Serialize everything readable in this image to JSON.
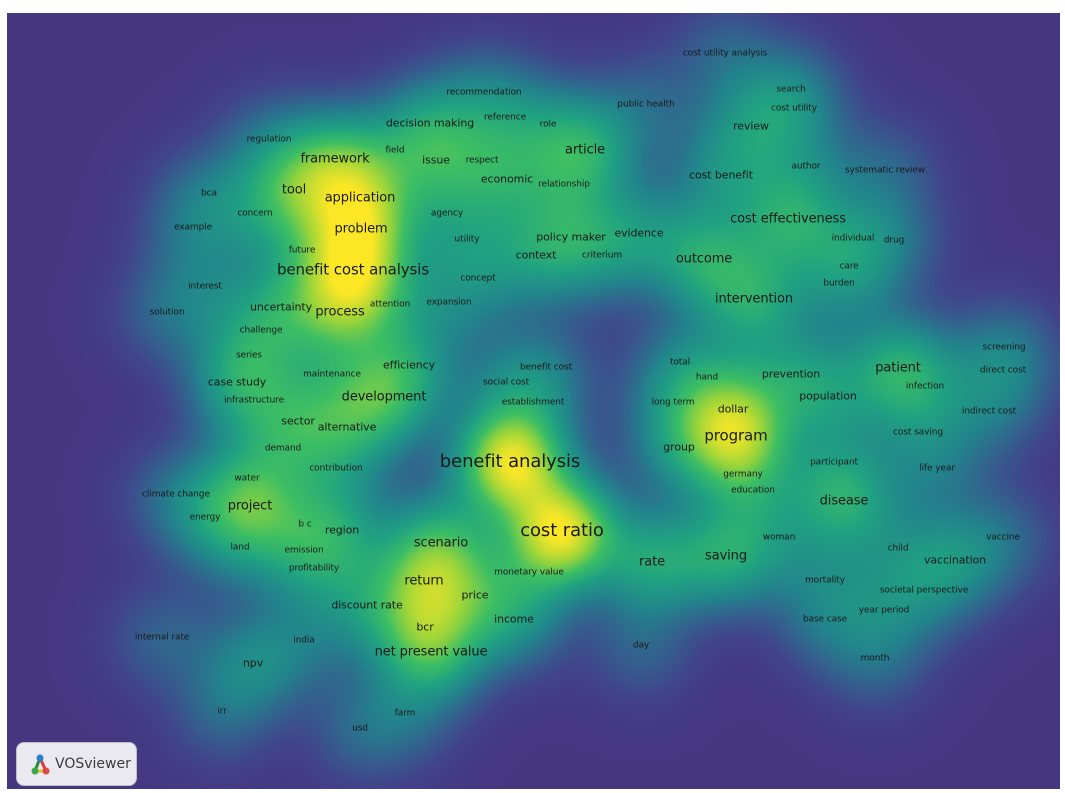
{
  "logo": {
    "text": "VOSviewer",
    "icon": "vosviewer-logo-icon"
  },
  "colors": {
    "background": "#453680",
    "low": "#31688e",
    "mid": "#21908d",
    "high": "#5ec962",
    "peak": "#fde725"
  },
  "terms": [
    {
      "label": "cost utility analysis",
      "w": 0
    },
    {
      "label": "recommendation",
      "w": 0
    },
    {
      "label": "search",
      "w": 0
    },
    {
      "label": "public health",
      "w": 0
    },
    {
      "label": "cost utility",
      "w": 0
    },
    {
      "label": "decision making",
      "w": 1
    },
    {
      "label": "reference",
      "w": 0
    },
    {
      "label": "role",
      "w": 0
    },
    {
      "label": "review",
      "w": 1
    },
    {
      "label": "regulation",
      "w": 0
    },
    {
      "label": "article",
      "w": 2
    },
    {
      "label": "field",
      "w": 0
    },
    {
      "label": "framework",
      "w": 2
    },
    {
      "label": "issue",
      "w": 1
    },
    {
      "label": "respect",
      "w": 0
    },
    {
      "label": "author",
      "w": 0
    },
    {
      "label": "cost benefit",
      "w": 1
    },
    {
      "label": "systematic review",
      "w": 0
    },
    {
      "label": "economic",
      "w": 1
    },
    {
      "label": "relationship",
      "w": 0
    },
    {
      "label": "bca",
      "w": 0
    },
    {
      "label": "tool",
      "w": 2
    },
    {
      "label": "application",
      "w": 2
    },
    {
      "label": "concern",
      "w": 0
    },
    {
      "label": "agency",
      "w": 0
    },
    {
      "label": "cost effectiveness",
      "w": 2
    },
    {
      "label": "example",
      "w": 0
    },
    {
      "label": "problem",
      "w": 2
    },
    {
      "label": "utility",
      "w": 0
    },
    {
      "label": "policy maker",
      "w": 1
    },
    {
      "label": "evidence",
      "w": 1
    },
    {
      "label": "individual",
      "w": 0
    },
    {
      "label": "drug",
      "w": 0
    },
    {
      "label": "future",
      "w": 0
    },
    {
      "label": "context",
      "w": 1
    },
    {
      "label": "criterium",
      "w": 0
    },
    {
      "label": "outcome",
      "w": 2
    },
    {
      "label": "benefit cost analysis",
      "w": 3
    },
    {
      "label": "care",
      "w": 0
    },
    {
      "label": "concept",
      "w": 0
    },
    {
      "label": "interest",
      "w": 0
    },
    {
      "label": "burden",
      "w": 0
    },
    {
      "label": "intervention",
      "w": 2
    },
    {
      "label": "uncertainty",
      "w": 1
    },
    {
      "label": "attention",
      "w": 0
    },
    {
      "label": "expansion",
      "w": 0
    },
    {
      "label": "solution",
      "w": 0
    },
    {
      "label": "process",
      "w": 2
    },
    {
      "label": "challenge",
      "w": 0
    },
    {
      "label": "screening",
      "w": 0
    },
    {
      "label": "total",
      "w": 0
    },
    {
      "label": "series",
      "w": 0
    },
    {
      "label": "efficiency",
      "w": 1
    },
    {
      "label": "benefit cost",
      "w": 0
    },
    {
      "label": "patient",
      "w": 2
    },
    {
      "label": "direct cost",
      "w": 0
    },
    {
      "label": "hand",
      "w": 0
    },
    {
      "label": "prevention",
      "w": 1
    },
    {
      "label": "maintenance",
      "w": 0
    },
    {
      "label": "social cost",
      "w": 0
    },
    {
      "label": "case study",
      "w": 1
    },
    {
      "label": "infection",
      "w": 0
    },
    {
      "label": "development",
      "w": 2
    },
    {
      "label": "population",
      "w": 1
    },
    {
      "label": "infrastructure",
      "w": 0
    },
    {
      "label": "long term",
      "w": 0
    },
    {
      "label": "establishment",
      "w": 0
    },
    {
      "label": "dollar",
      "w": 1
    },
    {
      "label": "indirect cost",
      "w": 0
    },
    {
      "label": "sector",
      "w": 1
    },
    {
      "label": "alternative",
      "w": 1
    },
    {
      "label": "cost saving",
      "w": 0
    },
    {
      "label": "program",
      "w": 3
    },
    {
      "label": "demand",
      "w": 0
    },
    {
      "label": "group",
      "w": 1
    },
    {
      "label": "benefit analysis",
      "w": 4
    },
    {
      "label": "participant",
      "w": 0
    },
    {
      "label": "contribution",
      "w": 0
    },
    {
      "label": "life year",
      "w": 0
    },
    {
      "label": "water",
      "w": 0
    },
    {
      "label": "germany",
      "w": 0
    },
    {
      "label": "education",
      "w": 0
    },
    {
      "label": "climate change",
      "w": 0
    },
    {
      "label": "disease",
      "w": 2
    },
    {
      "label": "project",
      "w": 2
    },
    {
      "label": "energy",
      "w": 0
    },
    {
      "label": "b c",
      "w": 0
    },
    {
      "label": "region",
      "w": 1
    },
    {
      "label": "cost ratio",
      "w": 4
    },
    {
      "label": "vaccine",
      "w": 0
    },
    {
      "label": "woman",
      "w": 0
    },
    {
      "label": "scenario",
      "w": 2
    },
    {
      "label": "land",
      "w": 0
    },
    {
      "label": "emission",
      "w": 0
    },
    {
      "label": "child",
      "w": 0
    },
    {
      "label": "saving",
      "w": 2
    },
    {
      "label": "vaccination",
      "w": 1
    },
    {
      "label": "rate",
      "w": 2
    },
    {
      "label": "profitability",
      "w": 0
    },
    {
      "label": "monetary value",
      "w": 0
    },
    {
      "label": "return",
      "w": 2
    },
    {
      "label": "mortality",
      "w": 0
    },
    {
      "label": "societal perspective",
      "w": 0
    },
    {
      "label": "price",
      "w": 1
    },
    {
      "label": "discount rate",
      "w": 1
    },
    {
      "label": "year period",
      "w": 0
    },
    {
      "label": "income",
      "w": 1
    },
    {
      "label": "base case",
      "w": 0
    },
    {
      "label": "bcr",
      "w": 1
    },
    {
      "label": "internal rate",
      "w": 0
    },
    {
      "label": "india",
      "w": 0
    },
    {
      "label": "day",
      "w": 0
    },
    {
      "label": "net present value",
      "w": 2
    },
    {
      "label": "npv",
      "w": 1
    },
    {
      "label": "month",
      "w": 0
    },
    {
      "label": "irr",
      "w": 0
    },
    {
      "label": "farm",
      "w": 0
    },
    {
      "label": "usd",
      "w": 0
    }
  ]
}
